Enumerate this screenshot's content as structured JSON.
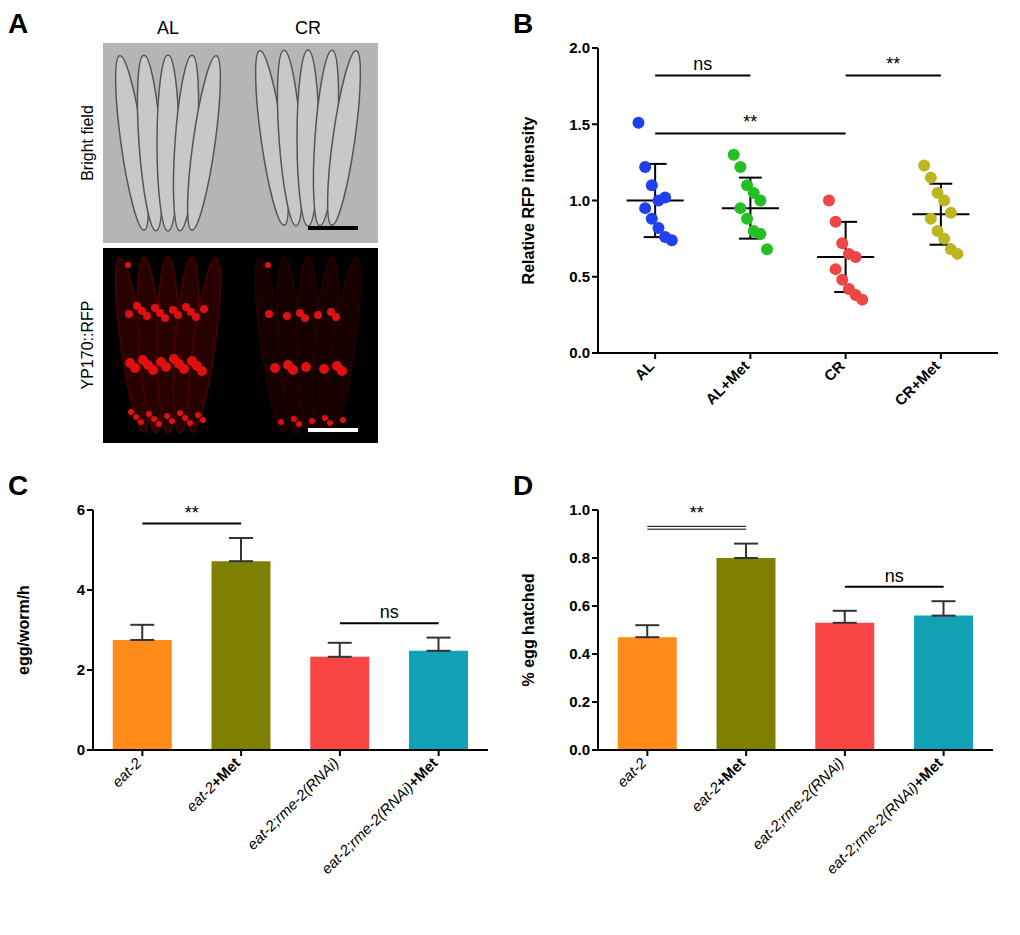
{
  "chart_data": [
    {
      "type": "image",
      "panel": "A",
      "column_labels": [
        "AL",
        "CR"
      ],
      "row_labels": [
        "Bright field",
        "YP170::RFP"
      ]
    },
    {
      "type": "scatter",
      "panel": "B",
      "categories": [
        "AL",
        "AL+Met",
        "CR",
        "CR+Met"
      ],
      "values": [
        [
          1.51,
          1.22,
          1.1,
          1.0,
          1.02,
          0.95,
          0.88,
          0.82,
          0.76,
          0.74
        ],
        [
          1.3,
          1.22,
          1.1,
          1.05,
          1.0,
          0.95,
          0.88,
          0.8,
          0.78,
          0.68
        ],
        [
          1.0,
          0.86,
          0.72,
          0.65,
          0.63,
          0.55,
          0.48,
          0.42,
          0.38,
          0.35
        ],
        [
          1.23,
          1.15,
          1.05,
          1.0,
          0.92,
          0.88,
          0.8,
          0.75,
          0.68,
          0.65
        ]
      ],
      "colors": [
        "#2040f0",
        "#22c022",
        "#f04545",
        "#bdb521"
      ],
      "mean": [
        1.0,
        0.95,
        0.63,
        0.91
      ],
      "sd": [
        0.24,
        0.2,
        0.23,
        0.2
      ],
      "y_label": "Relative RFP intensity",
      "ylim": [
        0,
        2
      ],
      "yticks": [
        {
          "value": 0,
          "label": "0.0"
        },
        0.5,
        {
          "value": 1,
          "label": "1.0"
        },
        1.5,
        {
          "value": 2,
          "label": "2.0"
        }
      ],
      "annotations": [
        {
          "text": "ns",
          "from": "AL",
          "to": "AL+Met"
        },
        {
          "text": "**",
          "from": "AL",
          "to": "CR"
        },
        {
          "text": "**",
          "from": "CR",
          "to": "CR+Met"
        }
      ]
    },
    {
      "type": "bar",
      "panel": "C",
      "categories": [
        "eat-2",
        "eat-2+Met",
        "eat-2;rme-2(RNAi)",
        "eat-2;rme-2(RNAi)+Met"
      ],
      "values": [
        2.75,
        4.72,
        2.33,
        2.48
      ],
      "errors": [
        0.38,
        0.58,
        0.35,
        0.33
      ],
      "colors": [
        "#ff8c1a",
        "#808000",
        "#fa4545",
        "#12a0b4"
      ],
      "y_label": "egg/worm/h",
      "ylim": [
        0,
        6
      ],
      "yticks": [
        0,
        2,
        4,
        6
      ],
      "annotations": [
        {
          "text": "**",
          "from": "eat-2",
          "to": "eat-2+Met"
        },
        {
          "text": "ns",
          "from": "eat-2;rme-2(RNAi)",
          "to": "eat-2;rme-2(RNAi)+Met"
        }
      ]
    },
    {
      "type": "bar",
      "panel": "D",
      "categories": [
        "eat-2",
        "eat-2+Met",
        "eat-2;rme-2(RNAi)",
        "eat-2;rme-2(RNAi)+Met"
      ],
      "values": [
        0.47,
        0.8,
        0.53,
        0.56
      ],
      "errors": [
        0.05,
        0.06,
        0.05,
        0.06
      ],
      "colors": [
        "#ff8c1a",
        "#808000",
        "#fa4545",
        "#12a0b4"
      ],
      "y_label": "% egg hatched",
      "ylim": [
        0,
        1
      ],
      "yticks": [
        {
          "value": 0,
          "label": "0.0"
        },
        0.2,
        0.4,
        0.6,
        0.8,
        {
          "value": 1,
          "label": "1.0"
        }
      ],
      "annotations": [
        {
          "text": "**",
          "from": "eat-2",
          "to": "eat-2+Met",
          "line_style": "double"
        },
        {
          "text": "ns",
          "from": "eat-2;rme-2(RNAi)",
          "to": "eat-2;rme-2(RNAi)+Met"
        }
      ]
    }
  ]
}
